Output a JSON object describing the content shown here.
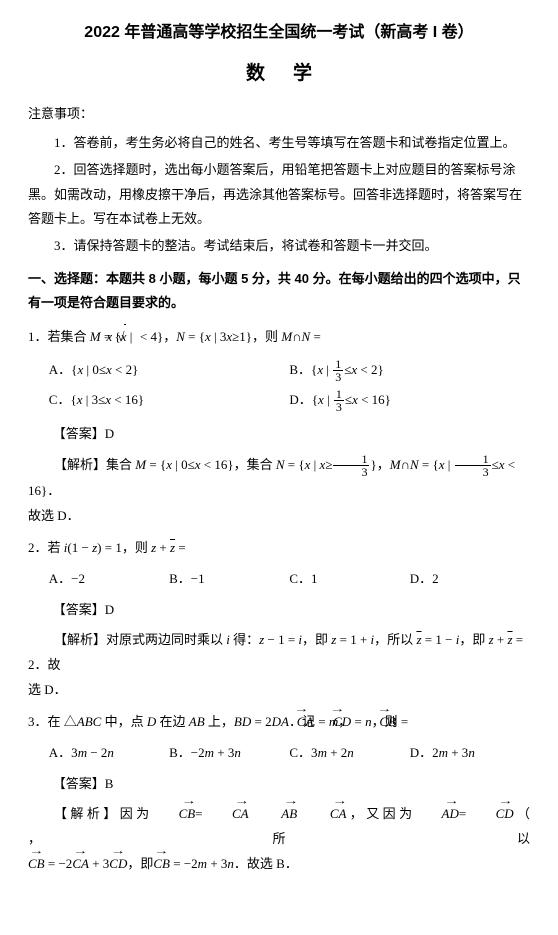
{
  "header": {
    "title": "2022 年普通高等学校招生全国统一考试（新高考 I 卷）",
    "subject": "数学"
  },
  "notice": {
    "head": "注意事项：",
    "items": [
      "1．答卷前，考生务必将自己的姓名、考生号等填写在答题卡和试卷指定位置上。",
      "2．回答选择题时，选出每小题答案后，用铅笔把答题卡上对应题目的答案标号涂黑。如需改动，用橡皮擦干净后，再选涂其他答案标号。回答非选择题时，将答案写在答题卡上。写在本试卷上无效。",
      "3．请保持答题卡的整洁。考试结束后，将试卷和答题卡一并交回。"
    ]
  },
  "section1": {
    "head": "一、选择题：本题共 8 小题，每小题 5 分，共 40 分。在每小题给出的四个选项中，只有一项是符合题目要求的。"
  },
  "q1": {
    "num": "1．",
    "pre": "若集合 ",
    "mid": "，",
    "end": "，则 ",
    "optA_pre": "A．{",
    "optA_mid": " | 0≤",
    "optA_suf": " < 2}",
    "optB_pre": "B．{",
    "optB_mid": " | ",
    "optB_suf": " < 2}",
    "optC_pre": "C．{",
    "optC_mid": " | 3≤",
    "optC_suf": " < 16}",
    "optD_pre": "D．{",
    "optD_mid": " | ",
    "optD_suf": " < 16}",
    "ans": "【答案】D",
    "expl_pre": "【解析】集合 ",
    "expl_mid1": "，集合 ",
    "expl_mid2": "，",
    "expl_end": "．",
    "expl_tail": "故选 D．"
  },
  "q2": {
    "num": "2．",
    "pre": "若 ",
    "end": "，则 ",
    "optA": "A．−2",
    "optB": "B．−1",
    "optC": "C．1",
    "optD": "D．2",
    "ans": "【答案】D",
    "expl_pre": "【解析】对原式两边同时乘以 ",
    "expl_1": " 得：",
    "expl_2": "，即 ",
    "expl_3": "，所以 ",
    "expl_4": "，即 ",
    "expl_5": "．故",
    "expl_tail": "选 D．"
  },
  "q3": {
    "num": "3．",
    "pre": "在 △",
    "mid1": " 中，点 ",
    "mid2": " 在边 ",
    "mid3": " 上，",
    "mid4": "．记",
    "mid5": "，",
    "mid6": "，则",
    "optA": "A．3",
    "optA2": " − 2",
    "optB": "B．−2",
    "optB2": " + 3",
    "optC": "C．3",
    "optC2": " + 2",
    "optD": "D．2",
    "optD2": " + 3",
    "ans": "【答案】B",
    "expl_pre": "【 解 析 】 因 为 ",
    "expl_mid1": " ， 又 因 为 ",
    "expl_mid2": "（ ， 所 以",
    "expl_line2_a": "，即",
    "expl_line2_b": "．故选 B．"
  },
  "sym": {
    "M": "M",
    "N": "N",
    "x": "x",
    "eq": " = ",
    "le": "≤",
    "lt": " < ",
    "i": "i",
    "z": "z",
    "zb": "z",
    "one": "1",
    "half_n": "1",
    "half_d": "3",
    "m": "m",
    "n": "n",
    "A": "A",
    "B": "B",
    "C": "C",
    "D": "D",
    "cap": "∩",
    "ABC": "ABC",
    "AB": "AB",
    "BD": "BD",
    "DA": "DA",
    "CA": "CA",
    "CD": "CD",
    "CB": "CB",
    "AD": "AD",
    "neg2": "−2",
    "p3": "+ 3",
    "rootx": "x",
    "four": "4",
    "sixteen": "16",
    "three": "3",
    "ge": "≥",
    "two": "2",
    "zero": "0"
  }
}
